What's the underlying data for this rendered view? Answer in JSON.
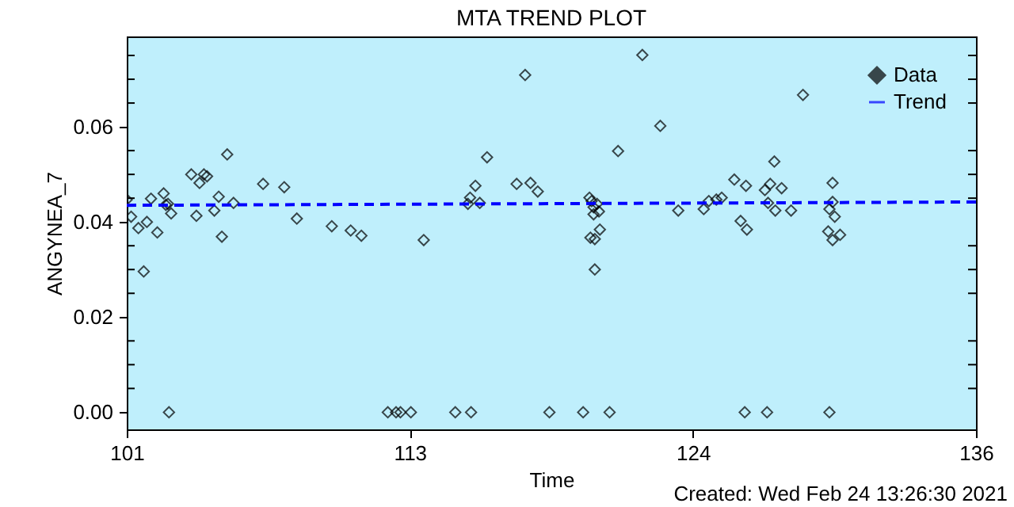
{
  "chart_data": {
    "type": "scatter",
    "title": "MTA TREND PLOT",
    "xlabel": "Time",
    "ylabel": "ANGYNEA_7",
    "annotations": [
      "Created: Wed Feb 24 13:26:30 2021"
    ],
    "xlim": [
      101,
      136
    ],
    "xticks": [
      101,
      {
        "value": 112.667,
        "label": "113"
      },
      {
        "value": 124.333,
        "label": "124"
      },
      136
    ],
    "ylim": [
      -0.0036,
      0.079
    ],
    "yticks": [
      {
        "value": 0,
        "label": "0.00"
      },
      {
        "value": 0.005,
        "label": null
      },
      {
        "value": 0.01,
        "label": null
      },
      {
        "value": 0.015,
        "label": null
      },
      {
        "value": 0.02,
        "label": "0.02"
      },
      {
        "value": 0.025,
        "label": null
      },
      {
        "value": 0.03,
        "label": null
      },
      {
        "value": 0.035,
        "label": null
      },
      {
        "value": 0.04,
        "label": "0.04"
      },
      {
        "value": 0.045,
        "label": null
      },
      {
        "value": 0.05,
        "label": null
      },
      {
        "value": 0.055,
        "label": null
      },
      {
        "value": 0.06,
        "label": "0.06"
      },
      {
        "value": 0.065,
        "label": null
      },
      {
        "value": 0.07,
        "label": null
      },
      {
        "value": 0.075,
        "label": null
      }
    ],
    "grid": false,
    "legend": "top right",
    "series": [
      {
        "name": "Data",
        "marker": "diamond",
        "color": "#000000",
        "x": [
          101.0,
          101.18,
          101.48,
          101.7,
          101.83,
          102.0,
          102.26,
          102.52,
          102.61,
          102.7,
          102.83,
          102.74,
          103.66,
          103.87,
          104.0,
          104.18,
          104.31,
          104.61,
          104.79,
          104.92,
          105.14,
          105.4,
          106.62,
          107.49,
          108.01,
          109.45,
          110.23,
          110.67,
          111.76,
          112.1,
          112.28,
          112.71,
          113.24,
          114.54,
          115.19,
          115.06,
          115.15,
          115.37,
          115.55,
          115.85,
          117.07,
          117.42,
          117.64,
          117.94,
          118.42,
          119.81,
          120.9,
          120.07,
          120.16,
          120.24,
          120.38,
          120.24,
          120.46,
          120.5,
          120.11,
          120.29,
          120.29,
          121.25,
          122.25,
          122.99,
          123.73,
          124.78,
          124.99,
          125.3,
          125.52,
          126.04,
          126.3,
          126.56,
          126.52,
          126.47,
          127.39,
          127.3,
          127.52,
          127.43,
          127.69,
          127.73,
          127.99,
          128.38,
          128.87,
          130.09,
          130.09,
          129.96,
          130.18,
          129.91,
          130.09,
          130.4,
          129.96
        ],
        "values": [
          0.0447,
          0.0411,
          0.0387,
          0.0296,
          0.04,
          0.0449,
          0.0378,
          0.046,
          0.0436,
          0.0438,
          0.0418,
          0.0,
          0.05,
          0.0413,
          0.0482,
          0.05,
          0.0496,
          0.0424,
          0.0453,
          0.0369,
          0.0542,
          0.044,
          0.048,
          0.0473,
          0.0407,
          0.0391,
          0.0382,
          0.0371,
          0.0,
          0.0,
          0.0,
          0.0,
          0.0362,
          0.0,
          0.0,
          0.0438,
          0.0451,
          0.0476,
          0.044,
          0.0536,
          0.048,
          0.0709,
          0.0482,
          0.0464,
          0.0,
          0.0,
          0.0,
          0.0451,
          0.0444,
          0.0431,
          0.0438,
          0.0416,
          0.0422,
          0.0384,
          0.0367,
          0.0364,
          0.03,
          0.0549,
          0.0751,
          0.0602,
          0.0424,
          0.0427,
          0.0444,
          0.0447,
          0.0451,
          0.0489,
          0.0402,
          0.0384,
          0.0476,
          0.0,
          0.0,
          0.0467,
          0.048,
          0.044,
          0.0527,
          0.0424,
          0.0471,
          0.0424,
          0.0667,
          0.0482,
          0.0442,
          0.0427,
          0.0411,
          0.038,
          0.0362,
          0.0373,
          0.0
        ]
      },
      {
        "name": "Trend",
        "type": "line",
        "line_style": "dashed",
        "color": "#0000ff",
        "x": [
          101,
          136
        ],
        "values": [
          0.0435,
          0.0442
        ]
      }
    ]
  }
}
